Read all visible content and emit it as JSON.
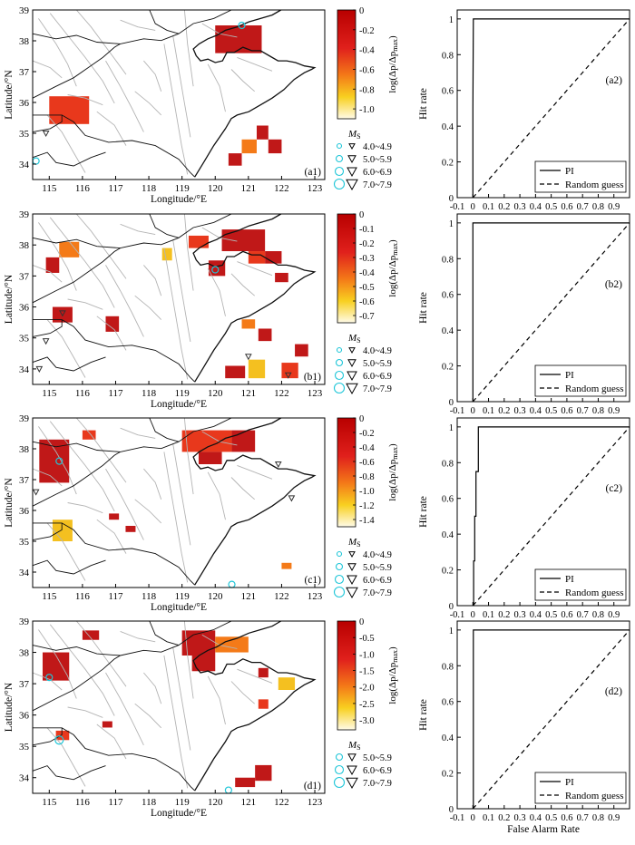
{
  "figure": {
    "map_xlabel": "Longitude/°E",
    "map_ylabel": "Latitude/°N",
    "roc_ylabel": "Hit rate",
    "roc_xlabel": "False Alarm Rate",
    "colorbar_label": "log(Δp/Δp",
    "colorbar_label_sub": "max",
    "colorbar_label_close": ")",
    "ms_label": "M",
    "ms_sub": "S",
    "map_xticks": [
      "115",
      "116",
      "117",
      "118",
      "119",
      "120",
      "121",
      "122",
      "123"
    ],
    "map_yticks": [
      "34",
      "35",
      "36",
      "37",
      "38",
      "39"
    ],
    "roc_xticks": [
      "-0.1",
      "0",
      "0.1",
      "0.2",
      "0.3",
      "0.4",
      "0.5",
      "0.6",
      "0.7",
      "0.8",
      "0.9"
    ],
    "roc_yticks": [
      "0",
      "0.2",
      "0.4",
      "0.6",
      "0.8",
      "1"
    ],
    "legend_pi": "PI",
    "legend_random": "Random guess",
    "colors": {
      "cell": "#c01818",
      "cell_mid": "#e8381c",
      "cell_orange": "#f47a18",
      "cell_yellow": "#f4c020",
      "fault": "#b4b4b4",
      "coast": "#111111",
      "eq_marker": "#333333",
      "ring": "#1fc6d8",
      "roc_line": "#000000"
    }
  },
  "chart_data": [
    {
      "type": "heatmap",
      "panel": "(a1)",
      "xlim": [
        114.5,
        123.3
      ],
      "ylim": [
        33.5,
        39
      ],
      "colorbar": {
        "ticks": [
          "0",
          "-0.2",
          "-0.4",
          "-0.6",
          "-0.8",
          "-1.0"
        ],
        "range": [
          -1.1,
          0
        ]
      },
      "legend_ms": [
        "4.0~4.9",
        "5.0~5.9",
        "6.0~6.9",
        "7.0~7.9"
      ],
      "anomaly_cells": [
        {
          "lon": [
            120,
            121.4
          ],
          "lat": [
            37.6,
            38.5
          ]
        },
        {
          "lon": [
            115,
            116.2
          ],
          "lat": [
            35.3,
            36.2
          ]
        },
        {
          "lon": [
            121.25,
            121.6
          ],
          "lat": [
            34.8,
            35.25
          ]
        },
        {
          "lon": [
            121.6,
            122.0
          ],
          "lat": [
            34.35,
            34.8
          ]
        },
        {
          "lon": [
            120.8,
            121.25
          ],
          "lat": [
            34.35,
            34.8
          ]
        },
        {
          "lon": [
            120.4,
            120.8
          ],
          "lat": [
            33.95,
            34.35
          ]
        }
      ],
      "earthquakes": [
        {
          "lon": 120.8,
          "lat": 38.5,
          "ms": "5.0~5.9"
        },
        {
          "lon": 114.6,
          "lat": 34.1,
          "ms": "5.0~5.9"
        },
        {
          "lon": 114.9,
          "lat": 35.0,
          "ms": "4.0~4.9"
        }
      ]
    },
    {
      "type": "line",
      "panel": "(a2)",
      "xlabel": "",
      "ylabel": "Hit rate",
      "xlim": [
        -0.1,
        1.0
      ],
      "ylim": [
        0,
        1.05
      ],
      "series": [
        {
          "name": "PI",
          "x": [
            0,
            0,
            0,
            0.003,
            1.0
          ],
          "y": [
            0,
            0.5,
            0.5,
            1,
            1
          ]
        },
        {
          "name": "Random guess",
          "x": [
            0,
            1
          ],
          "y": [
            0,
            1
          ]
        }
      ]
    },
    {
      "type": "heatmap",
      "panel": "(b1)",
      "xlim": [
        114.5,
        123.3
      ],
      "ylim": [
        33.5,
        39
      ],
      "colorbar": {
        "ticks": [
          "0",
          "-0.1",
          "-0.2",
          "-0.3",
          "-0.4",
          "-0.5",
          "-0.6",
          "-0.7"
        ],
        "range": [
          -0.75,
          0
        ]
      },
      "legend_ms": [
        "4.0~4.9",
        "5.0~5.9",
        "6.0~6.9",
        "7.0~7.9"
      ],
      "anomaly_cells": [
        {
          "lon": [
            114.9,
            115.3
          ],
          "lat": [
            37.1,
            37.6
          ]
        },
        {
          "lon": [
            115.3,
            115.9
          ],
          "lat": [
            37.6,
            38.1
          ]
        },
        {
          "lon": [
            115.1,
            115.7
          ],
          "lat": [
            35.5,
            36.0
          ]
        },
        {
          "lon": [
            116.7,
            117.1
          ],
          "lat": [
            35.2,
            35.7
          ]
        },
        {
          "lon": [
            118.4,
            118.7
          ],
          "lat": [
            37.5,
            37.9
          ]
        },
        {
          "lon": [
            119.2,
            119.8
          ],
          "lat": [
            37.9,
            38.3
          ]
        },
        {
          "lon": [
            119.8,
            120.3
          ],
          "lat": [
            37.0,
            37.5
          ]
        },
        {
          "lon": [
            120.2,
            121.5
          ],
          "lat": [
            37.8,
            38.5
          ]
        },
        {
          "lon": [
            121.0,
            121.5
          ],
          "lat": [
            37.4,
            37.8
          ]
        },
        {
          "lon": [
            121.5,
            122.0
          ],
          "lat": [
            37.4,
            37.8
          ]
        },
        {
          "lon": [
            121.8,
            122.2
          ],
          "lat": [
            36.8,
            37.1
          ]
        },
        {
          "lon": [
            120.8,
            121.2
          ],
          "lat": [
            35.3,
            35.6
          ]
        },
        {
          "lon": [
            121.3,
            121.7
          ],
          "lat": [
            34.9,
            35.3
          ]
        },
        {
          "lon": [
            120.3,
            120.9
          ],
          "lat": [
            33.7,
            34.1
          ]
        },
        {
          "lon": [
            121.0,
            121.5
          ],
          "lat": [
            33.7,
            34.3
          ]
        },
        {
          "lon": [
            122.0,
            122.5
          ],
          "lat": [
            33.7,
            34.2
          ]
        },
        {
          "lon": [
            122.4,
            122.8
          ],
          "lat": [
            34.4,
            34.8
          ]
        }
      ],
      "earthquakes": [
        {
          "lon": 120.0,
          "lat": 37.2,
          "ms": "5.0~5.9"
        },
        {
          "lon": 115.4,
          "lat": 35.8,
          "ms": "4.0~4.9"
        },
        {
          "lon": 114.9,
          "lat": 34.9,
          "ms": "4.0~4.9"
        },
        {
          "lon": 114.7,
          "lat": 34.0,
          "ms": "4.0~4.9"
        },
        {
          "lon": 121.0,
          "lat": 34.4,
          "ms": "4.0~4.9"
        },
        {
          "lon": 122.2,
          "lat": 33.8,
          "ms": "4.0~4.9"
        }
      ]
    },
    {
      "type": "line",
      "panel": "(b2)",
      "xlabel": "",
      "ylabel": "Hit rate",
      "xlim": [
        -0.1,
        1.0
      ],
      "ylim": [
        0,
        1.05
      ],
      "series": [
        {
          "name": "PI",
          "x": [
            0,
            0,
            0.003,
            1.0
          ],
          "y": [
            0,
            1,
            1,
            1
          ]
        },
        {
          "name": "Random guess",
          "x": [
            0,
            1
          ],
          "y": [
            0,
            1
          ]
        }
      ]
    },
    {
      "type": "heatmap",
      "panel": "(c1)",
      "xlim": [
        114.5,
        123.3
      ],
      "ylim": [
        33.5,
        39
      ],
      "colorbar": {
        "ticks": [
          "0",
          "-0.2",
          "-0.4",
          "-0.6",
          "-0.8",
          "-1.0",
          "-1.2",
          "-1.4"
        ],
        "range": [
          -1.5,
          0
        ]
      },
      "legend_ms": [
        "4.0~4.9",
        "5.0~5.9",
        "6.0~6.9",
        "7.0~7.9"
      ],
      "anomaly_cells": [
        {
          "lon": [
            114.7,
            115.6
          ],
          "lat": [
            36.9,
            38.3
          ]
        },
        {
          "lon": [
            115.1,
            115.7
          ],
          "lat": [
            35.0,
            35.7
          ]
        },
        {
          "lon": [
            116.0,
            116.4
          ],
          "lat": [
            38.3,
            38.6
          ]
        },
        {
          "lon": [
            116.8,
            117.1
          ],
          "lat": [
            35.7,
            35.9
          ]
        },
        {
          "lon": [
            117.3,
            117.6
          ],
          "lat": [
            35.3,
            35.5
          ]
        },
        {
          "lon": [
            119.0,
            120.5
          ],
          "lat": [
            37.9,
            38.6
          ]
        },
        {
          "lon": [
            119.5,
            120.2
          ],
          "lat": [
            37.5,
            37.9
          ]
        },
        {
          "lon": [
            120.5,
            121.2
          ],
          "lat": [
            37.9,
            38.6
          ]
        },
        {
          "lon": [
            122.0,
            122.3
          ],
          "lat": [
            34.1,
            34.3
          ]
        }
      ],
      "earthquakes": [
        {
          "lon": 115.3,
          "lat": 37.6,
          "ms": "5.0~5.9"
        },
        {
          "lon": 114.6,
          "lat": 36.6,
          "ms": "4.0~4.9"
        },
        {
          "lon": 121.9,
          "lat": 37.5,
          "ms": "4.0~4.9"
        },
        {
          "lon": 122.3,
          "lat": 36.4,
          "ms": "4.0~4.9"
        },
        {
          "lon": 120.5,
          "lat": 33.6,
          "ms": "5.0~5.9"
        }
      ]
    },
    {
      "type": "line",
      "panel": "(c2)",
      "xlabel": "",
      "ylabel": "Hit rate",
      "xlim": [
        -0.1,
        1.0
      ],
      "ylim": [
        0,
        1.05
      ],
      "series": [
        {
          "name": "PI",
          "x": [
            0,
            0.005,
            0.005,
            0.012,
            0.012,
            0.02,
            0.02,
            0.035,
            0.035,
            1.0
          ],
          "y": [
            0,
            0,
            0.25,
            0.25,
            0.5,
            0.5,
            0.75,
            0.75,
            1,
            1
          ]
        },
        {
          "name": "Random guess",
          "x": [
            0,
            1
          ],
          "y": [
            0,
            1
          ]
        }
      ]
    },
    {
      "type": "heatmap",
      "panel": "(d1)",
      "xlim": [
        114.5,
        123.3
      ],
      "ylim": [
        33.5,
        39
      ],
      "colorbar": {
        "ticks": [
          "0",
          "-0.5",
          "-1.0",
          "-1.5",
          "-2.0",
          "-2.5",
          "-3.0"
        ],
        "range": [
          -3.3,
          0
        ]
      },
      "legend_ms": [
        "5.0~5.9",
        "6.0~6.9",
        "7.0~7.9"
      ],
      "anomaly_cells": [
        {
          "lon": [
            114.8,
            115.6
          ],
          "lat": [
            37.1,
            38.0
          ]
        },
        {
          "lon": [
            116.0,
            116.5
          ],
          "lat": [
            38.4,
            38.7
          ]
        },
        {
          "lon": [
            115.2,
            115.6
          ],
          "lat": [
            35.2,
            35.5
          ]
        },
        {
          "lon": [
            116.6,
            116.9
          ],
          "lat": [
            35.6,
            35.8
          ]
        },
        {
          "lon": [
            119.0,
            120.0
          ],
          "lat": [
            37.9,
            38.7
          ]
        },
        {
          "lon": [
            120.0,
            121.0
          ],
          "lat": [
            38.0,
            38.5
          ]
        },
        {
          "lon": [
            119.3,
            120.0
          ],
          "lat": [
            37.4,
            37.9
          ]
        },
        {
          "lon": [
            121.3,
            121.6
          ],
          "lat": [
            37.2,
            37.5
          ]
        },
        {
          "lon": [
            121.9,
            122.4
          ],
          "lat": [
            36.8,
            37.2
          ]
        },
        {
          "lon": [
            121.3,
            121.6
          ],
          "lat": [
            36.2,
            36.5
          ]
        },
        {
          "lon": [
            120.6,
            121.2
          ],
          "lat": [
            33.7,
            34.0
          ]
        },
        {
          "lon": [
            121.2,
            121.7
          ],
          "lat": [
            33.9,
            34.4
          ]
        }
      ],
      "earthquakes": [
        {
          "lon": 115.0,
          "lat": 37.2,
          "ms": "5.0~5.9"
        },
        {
          "lon": 115.3,
          "lat": 35.2,
          "ms": "6.0~6.9"
        },
        {
          "lon": 120.4,
          "lat": 33.6,
          "ms": "5.0~5.9"
        }
      ]
    },
    {
      "type": "line",
      "panel": "(d2)",
      "xlabel": "False Alarm Rate",
      "ylabel": "Hit rate",
      "xlim": [
        -0.1,
        1.0
      ],
      "ylim": [
        0,
        1.05
      ],
      "series": [
        {
          "name": "PI",
          "x": [
            0,
            0.003,
            0.003,
            1.0
          ],
          "y": [
            0,
            0,
            1,
            1
          ]
        },
        {
          "name": "Random guess",
          "x": [
            0,
            1
          ],
          "y": [
            0,
            1
          ]
        }
      ]
    }
  ]
}
